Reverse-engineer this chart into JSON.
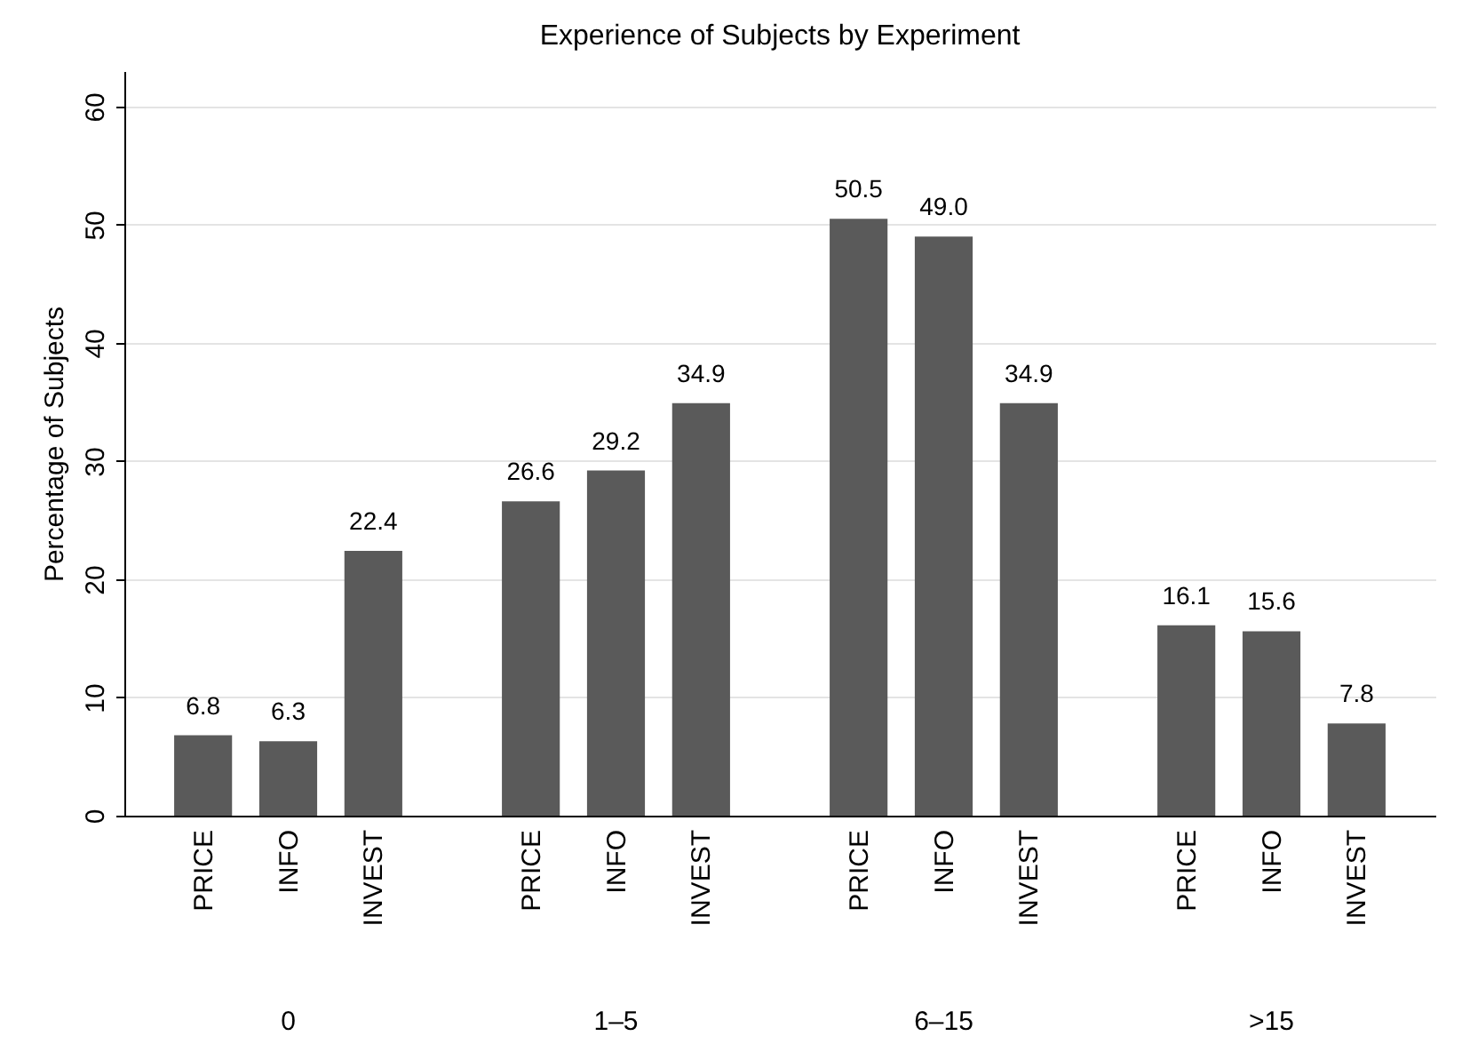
{
  "chart_data": {
    "type": "bar",
    "title": "Experience of Subjects by Experiment",
    "ylabel": "Percentage of Subjects",
    "categories": [
      "0",
      "1–5",
      "6–15",
      ">15"
    ],
    "series": [
      {
        "name": "PRICE",
        "color": "#5a5a5a",
        "values": [
          6.8,
          26.6,
          50.5,
          16.1
        ],
        "value_labels": [
          "6.8",
          "26.6",
          "50.5",
          "16.1"
        ]
      },
      {
        "name": "INFO",
        "color": "#5a5a5a",
        "values": [
          6.3,
          29.2,
          49.0,
          15.6
        ],
        "value_labels": [
          "6.3",
          "29.2",
          "49.0",
          "15.6"
        ]
      },
      {
        "name": "INVEST",
        "color": "#5a5a5a",
        "values": [
          22.4,
          34.9,
          34.9,
          7.8
        ],
        "value_labels": [
          "22.4",
          "34.9",
          "34.9",
          "7.8"
        ]
      }
    ],
    "ylim": [
      0,
      63
    ],
    "yticks": [
      0,
      10,
      20,
      30,
      40,
      50,
      60
    ],
    "grid": "y"
  }
}
